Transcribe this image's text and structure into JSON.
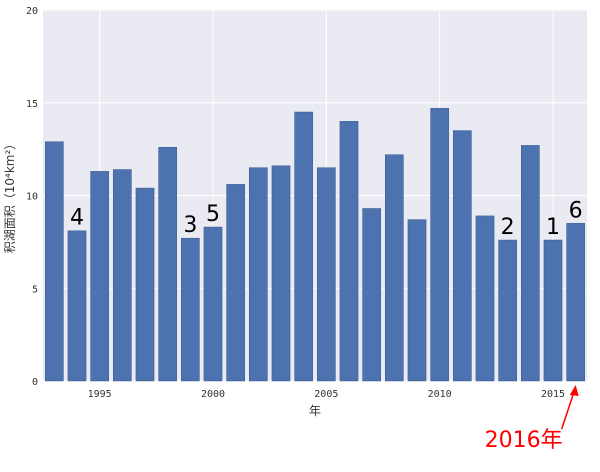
{
  "chart_data": {
    "type": "bar",
    "x": [
      1993,
      1994,
      1995,
      1996,
      1997,
      1998,
      1999,
      2000,
      2001,
      2002,
      2003,
      2004,
      2005,
      2006,
      2007,
      2008,
      2009,
      2010,
      2011,
      2012,
      2013,
      2014,
      2015,
      2016
    ],
    "values": [
      12.9,
      8.1,
      11.3,
      11.4,
      10.4,
      12.6,
      7.7,
      8.3,
      10.6,
      11.5,
      11.6,
      14.5,
      11.5,
      14.0,
      9.3,
      12.2,
      8.7,
      14.7,
      13.5,
      8.9,
      7.6,
      12.7,
      7.6,
      8.5
    ],
    "xlabel": "年",
    "ylabel": "积湖面积（10⁴km²）",
    "xticks": [
      "1995",
      "2000",
      "2005",
      "2010",
      "2015"
    ],
    "yticks": [
      "0",
      "5",
      "10",
      "15",
      "20"
    ],
    "ylim": [
      0,
      20
    ],
    "grid": true,
    "bar_color": "#4c72b0",
    "background_color": "#eaeaf2",
    "bar_rank_labels": [
      {
        "year": 1994,
        "text": "4"
      },
      {
        "year": 1999,
        "text": "3"
      },
      {
        "year": 2000,
        "text": "5"
      },
      {
        "year": 2013,
        "text": "2"
      },
      {
        "year": 2015,
        "text": "1"
      },
      {
        "year": 2016,
        "text": "6"
      }
    ],
    "annotation": {
      "year": 2016,
      "text": "2016年",
      "color": "#ff0000"
    }
  }
}
